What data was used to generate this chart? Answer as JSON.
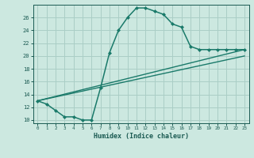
{
  "xlabel": "Humidex (Indice chaleur)",
  "bg_color": "#cce8e0",
  "grid_color": "#aacec6",
  "line_color": "#1a7a6a",
  "xlim": [
    -0.5,
    23.5
  ],
  "ylim": [
    9.5,
    28
  ],
  "xticks": [
    0,
    1,
    2,
    3,
    4,
    5,
    6,
    7,
    8,
    9,
    10,
    11,
    12,
    13,
    14,
    15,
    16,
    17,
    18,
    19,
    20,
    21,
    22,
    23
  ],
  "yticks": [
    10,
    12,
    14,
    16,
    18,
    20,
    22,
    24,
    26
  ],
  "series1": [
    [
      0,
      13.0
    ],
    [
      1,
      12.5
    ],
    [
      2,
      11.5
    ],
    [
      3,
      10.5
    ],
    [
      4,
      10.5
    ],
    [
      5,
      10.0
    ],
    [
      6,
      10.0
    ],
    [
      7,
      15.0
    ],
    [
      8,
      20.5
    ],
    [
      9,
      24.0
    ],
    [
      10,
      26.0
    ],
    [
      11,
      27.5
    ],
    [
      12,
      27.5
    ],
    [
      13,
      27.0
    ],
    [
      14,
      26.5
    ],
    [
      15,
      25.0
    ],
    [
      16,
      24.5
    ],
    [
      17,
      21.5
    ],
    [
      18,
      21.0
    ],
    [
      19,
      21.0
    ],
    [
      20,
      21.0
    ],
    [
      21,
      21.0
    ],
    [
      22,
      21.0
    ],
    [
      23,
      21.0
    ]
  ],
  "series2": [
    [
      0,
      13.0
    ],
    [
      23,
      21.0
    ]
  ],
  "series3": [
    [
      0,
      13.0
    ],
    [
      23,
      20.0
    ]
  ]
}
